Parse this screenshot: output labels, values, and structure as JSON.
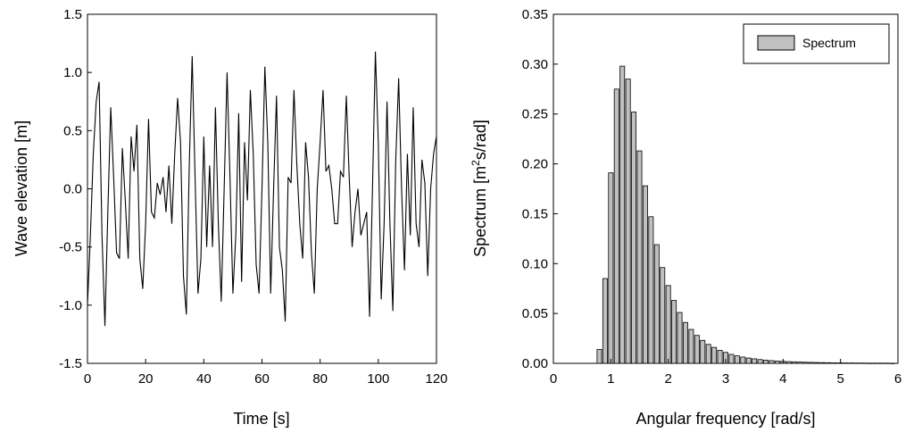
{
  "chart_data": [
    {
      "type": "line",
      "title": "",
      "xlabel": "Time [s]",
      "ylabel": "Wave elevation [m]",
      "xlim": [
        0,
        120
      ],
      "ylim": [
        -1.5,
        1.5
      ],
      "x_ticks": [
        "0",
        "20",
        "40",
        "60",
        "80",
        "100",
        "120"
      ],
      "y_ticks": [
        "-1.5",
        "-1.0",
        "-0.5",
        "0.0",
        "0.5",
        "1.0",
        "1.5"
      ],
      "grid": false,
      "line_color": "#000000",
      "series": [
        {
          "x": [
            0,
            1,
            2,
            3,
            4,
            5,
            6,
            7,
            8,
            9,
            10,
            11,
            12,
            13,
            14,
            15,
            16,
            17,
            18,
            19,
            20,
            21,
            22,
            23,
            24,
            25,
            26,
            27,
            28,
            29,
            30,
            31,
            32,
            33,
            34,
            35,
            36,
            37,
            38,
            39,
            40,
            41,
            42,
            43,
            44,
            45,
            46,
            47,
            48,
            49,
            50,
            51,
            52,
            53,
            54,
            55,
            56,
            57,
            58,
            59,
            60,
            61,
            62,
            63,
            64,
            65,
            66,
            67,
            68,
            69,
            70,
            71,
            72,
            73,
            74,
            75,
            76,
            77,
            78,
            79,
            80,
            81,
            82,
            83,
            84,
            85,
            86,
            87,
            88,
            89,
            90,
            91,
            92,
            93,
            94,
            95,
            96,
            97,
            98,
            99,
            100,
            101,
            102,
            103,
            104,
            105,
            106,
            107,
            108,
            109,
            110,
            111,
            112,
            113,
            114,
            115,
            116,
            117,
            118,
            119,
            120
          ],
          "values": [
            -1.0,
            -0.4,
            0.3,
            0.75,
            0.92,
            -0.4,
            -1.18,
            -0.2,
            0.7,
            0.1,
            -0.55,
            -0.6,
            0.35,
            -0.1,
            -0.6,
            0.45,
            0.15,
            0.55,
            -0.6,
            -0.86,
            -0.3,
            0.6,
            -0.2,
            -0.25,
            0.05,
            -0.05,
            0.1,
            -0.2,
            0.2,
            -0.3,
            0.3,
            0.78,
            0.4,
            -0.75,
            -1.08,
            0.2,
            1.14,
            0.1,
            -0.9,
            -0.6,
            0.45,
            -0.5,
            0.2,
            -0.5,
            0.7,
            -0.3,
            -0.97,
            0.0,
            1.0,
            0.1,
            -0.9,
            -0.4,
            0.65,
            -0.8,
            0.4,
            -0.1,
            0.85,
            0.3,
            -0.65,
            -0.9,
            0.0,
            1.05,
            0.4,
            -0.9,
            0.0,
            0.8,
            -0.5,
            -0.7,
            -1.14,
            0.1,
            0.05,
            0.85,
            0.2,
            -0.3,
            -0.6,
            0.4,
            0.1,
            -0.55,
            -0.9,
            0.0,
            0.4,
            0.85,
            0.15,
            0.2,
            0.0,
            -0.3,
            -0.3,
            0.15,
            0.1,
            0.8,
            0.1,
            -0.5,
            -0.2,
            0.0,
            -0.4,
            -0.3,
            -0.2,
            -1.1,
            0.0,
            1.18,
            0.4,
            -0.95,
            -0.3,
            0.75,
            -0.3,
            -1.05,
            0.25,
            0.95,
            0.0,
            -0.7,
            0.3,
            -0.4,
            0.7,
            -0.3,
            -0.5,
            0.25,
            0.05,
            -0.75,
            0.0,
            0.3,
            0.45
          ]
        }
      ]
    },
    {
      "type": "bar",
      "title": "",
      "xlabel": "Angular frequency [rad/s]",
      "ylabel_prefix": "Spectrum [m",
      "ylabel_sup": "2",
      "ylabel_suffix": "s/rad]",
      "xlim": [
        0,
        6
      ],
      "ylim": [
        0,
        0.35
      ],
      "x_ticks": [
        "0",
        "1",
        "2",
        "3",
        "4",
        "5",
        "6"
      ],
      "y_ticks": [
        "0.00",
        "0.05",
        "0.10",
        "0.15",
        "0.20",
        "0.25",
        "0.30",
        "0.35"
      ],
      "grid": false,
      "legend": {
        "position": "top-right",
        "entries": [
          "Spectrum"
        ]
      },
      "bar_fill": "#c0c0c0",
      "bar_stroke": "#000000",
      "bar_width": 0.08,
      "series": [
        {
          "name": "Spectrum",
          "x": [
            0.8,
            0.9,
            1.0,
            1.1,
            1.2,
            1.3,
            1.4,
            1.5,
            1.6,
            1.7,
            1.8,
            1.9,
            2.0,
            2.1,
            2.2,
            2.3,
            2.4,
            2.5,
            2.6,
            2.7,
            2.8,
            2.9,
            3.0,
            3.1,
            3.2,
            3.3,
            3.4,
            3.5,
            3.6,
            3.7,
            3.8,
            3.9,
            4.0,
            4.1,
            4.2,
            4.3,
            4.4,
            4.5,
            4.6,
            4.7,
            4.8,
            4.9,
            5.0,
            5.1,
            5.2,
            5.3,
            5.4,
            5.5,
            5.6,
            5.7,
            5.8,
            5.9
          ],
          "values": [
            0.014,
            0.085,
            0.191,
            0.275,
            0.298,
            0.285,
            0.252,
            0.213,
            0.178,
            0.147,
            0.119,
            0.096,
            0.078,
            0.063,
            0.051,
            0.041,
            0.034,
            0.028,
            0.023,
            0.019,
            0.016,
            0.013,
            0.011,
            0.009,
            0.0075,
            0.0063,
            0.0053,
            0.0045,
            0.0038,
            0.0032,
            0.0027,
            0.0023,
            0.002,
            0.0017,
            0.0015,
            0.0013,
            0.0011,
            0.001,
            0.0008,
            0.0007,
            0.0006,
            0.0005,
            0.0005,
            0.0004,
            0.0004,
            0.0003,
            0.0003,
            0.0002,
            0.0002,
            0.0002,
            0.0002,
            0.0001
          ]
        }
      ]
    }
  ]
}
